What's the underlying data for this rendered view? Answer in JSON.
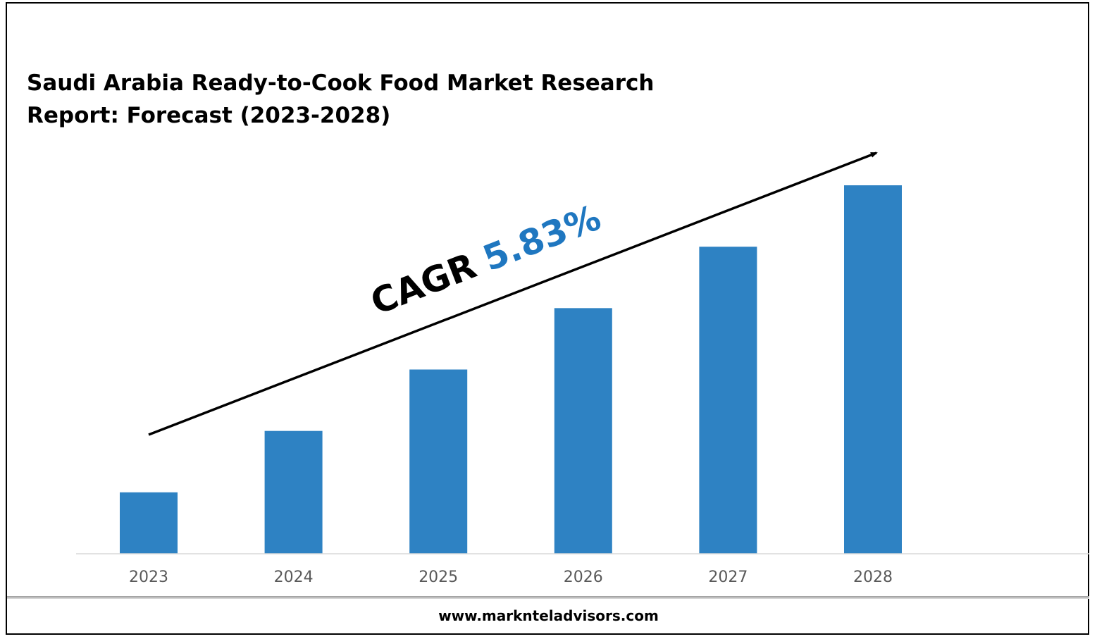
{
  "title": "Saudi Arabia Ready-to-Cook Food Market Research Report: Forecast (2023-2028)",
  "footer": "www.marknteladvisors.com",
  "cagr": {
    "label": "CAGR",
    "value": "5.83%"
  },
  "colors": {
    "bar": "#2e82c3",
    "cagr_value": "#1f77c0",
    "text": "#000000",
    "axis": "#d9d9d9",
    "tick_label": "#595959"
  },
  "chart_data": {
    "type": "bar",
    "categories": [
      "2023",
      "2024",
      "2025",
      "2026",
      "2027",
      "2028"
    ],
    "values": [
      1.0,
      2.0,
      3.0,
      4.0,
      5.0,
      6.0
    ],
    "ylim": [
      0,
      6.0
    ],
    "grid": false,
    "legend": "none",
    "annotation": "CAGR 5.83%"
  }
}
